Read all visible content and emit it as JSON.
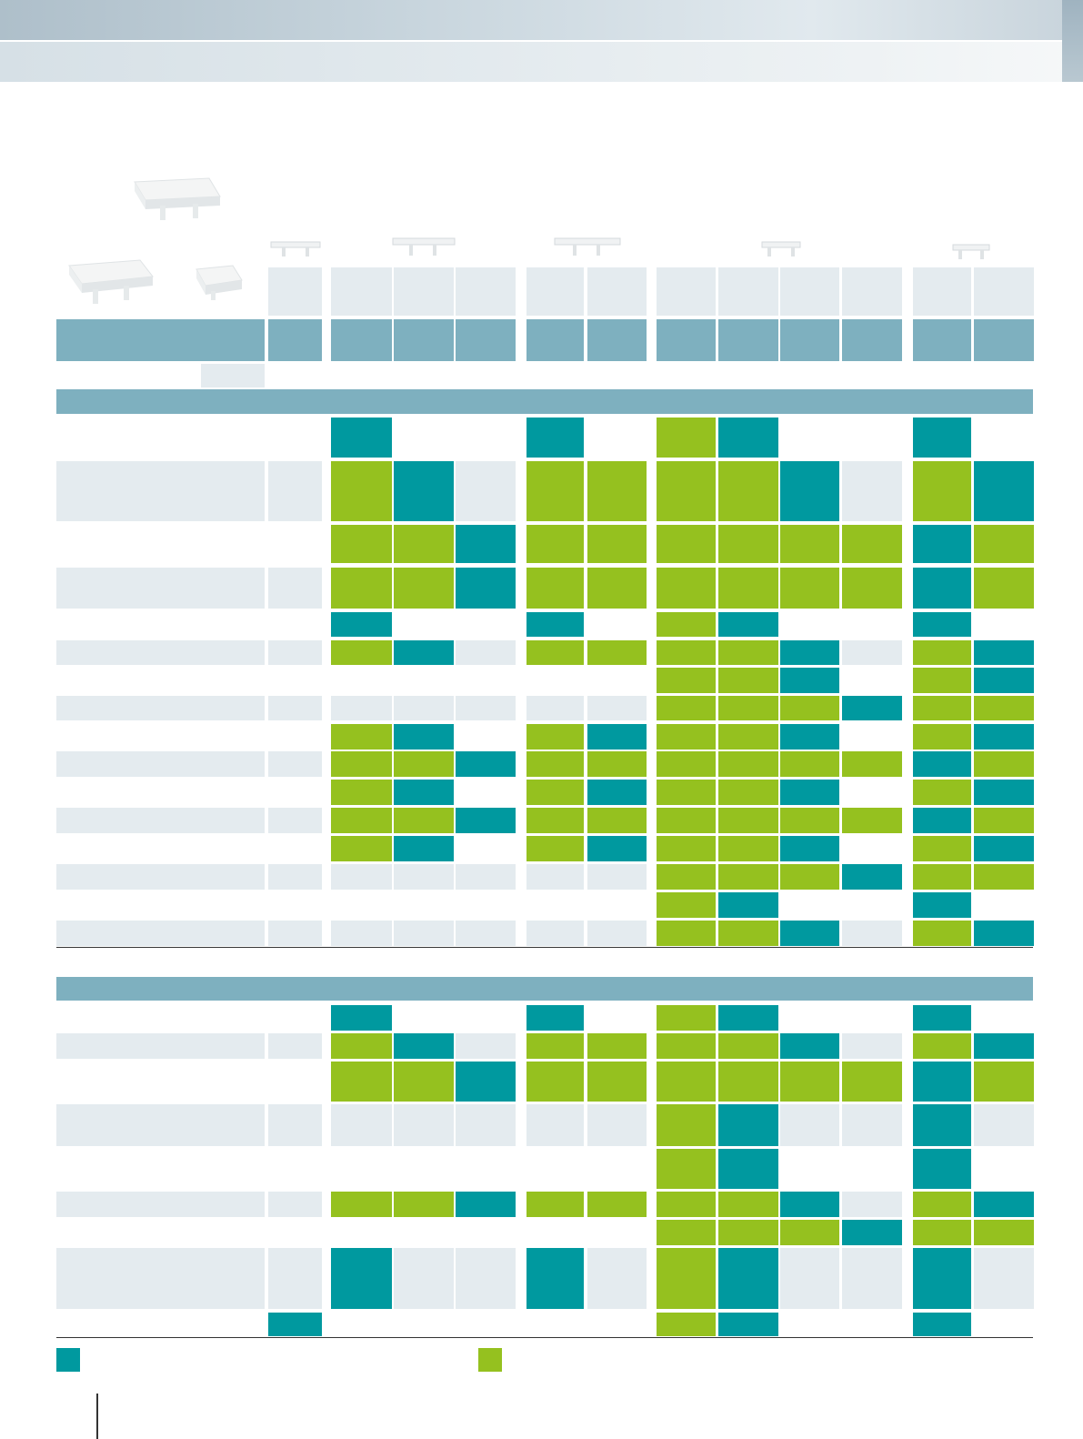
{
  "colors": {
    "teal": "#00999f",
    "green": "#95c11f",
    "header_blue": "#7eb0bf",
    "row_grey": "#e4ebef"
  },
  "legend": [
    {
      "color": "teal",
      "label": ""
    },
    {
      "color": "green",
      "label": ""
    }
  ],
  "page_number": ""
}
